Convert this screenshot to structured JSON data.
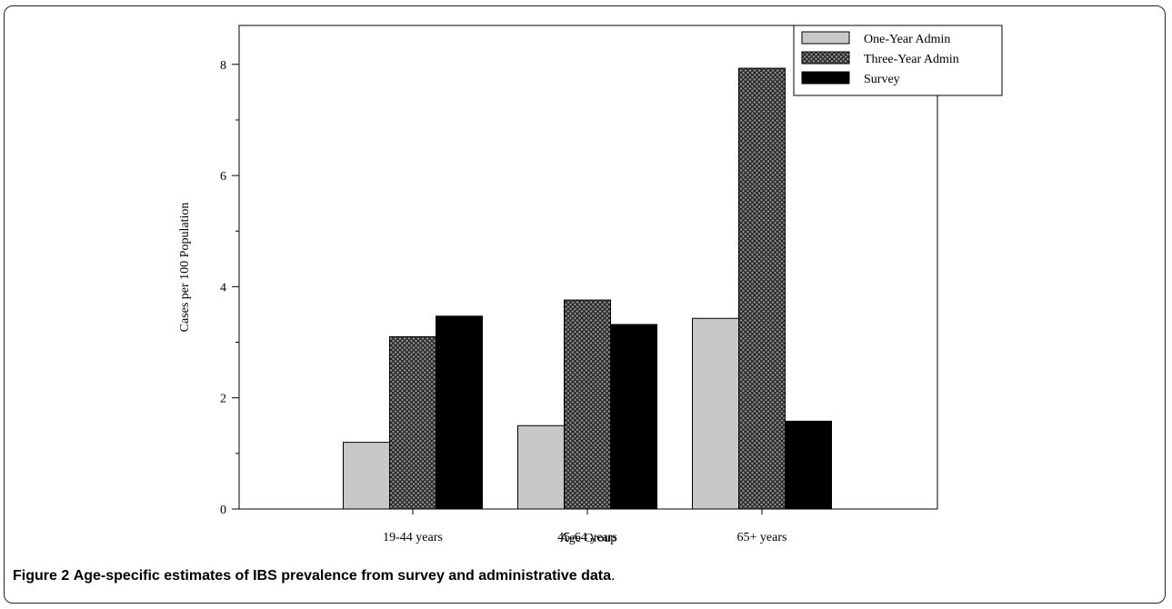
{
  "chart_data": {
    "type": "bar",
    "categories": [
      "19-44 years",
      "45-64 years",
      "65+ years"
    ],
    "series": [
      {
        "name": "One-Year Admin",
        "values": [
          1.2,
          1.5,
          3.43
        ],
        "color": "#c8c8c8",
        "pattern": "solid"
      },
      {
        "name": "Three-Year Admin",
        "values": [
          3.1,
          3.76,
          7.93
        ],
        "color": "#555555",
        "pattern": "crosshatch"
      },
      {
        "name": "Survey",
        "values": [
          3.47,
          3.32,
          1.58
        ],
        "color": "#000000",
        "pattern": "solid"
      }
    ],
    "xlabel": "Age Group",
    "ylabel": "Cases per 100 Population",
    "ylim": [
      0,
      8.7
    ],
    "yticks": [
      0,
      2,
      4,
      6,
      8
    ],
    "legend_position": "top-right",
    "grid": false
  },
  "caption": {
    "label": "Figure 2",
    "text": "Age-specific estimates of IBS prevalence from survey and administrative data",
    "end": "."
  }
}
